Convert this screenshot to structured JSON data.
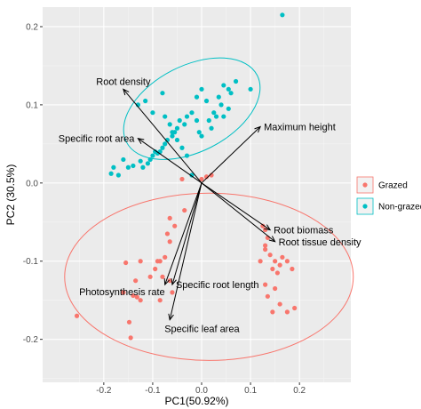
{
  "chart_data": {
    "type": "scatter",
    "title": "",
    "xlabel": "PC1(50.92%)",
    "ylabel": "PC2 (30.5%)",
    "xlim": [
      -0.325,
      0.305
    ],
    "ylim": [
      -0.255,
      0.225
    ],
    "xticks": [
      -0.2,
      -0.1,
      0.0,
      0.1,
      0.2
    ],
    "xtick_labels": [
      "-0.2",
      "-0.1",
      "0.0",
      "0.1",
      "0.2"
    ],
    "yticks": [
      -0.2,
      -0.1,
      0.0,
      0.1,
      0.2
    ],
    "ytick_labels": [
      "-0.2",
      "-0.1",
      "0.0",
      "0.1",
      "0.2"
    ],
    "grid": true,
    "legend_position": "right",
    "series": [
      {
        "name": "Grazed",
        "color": "#F8766D",
        "points": [
          [
            -0.255,
            -0.17
          ],
          [
            -0.145,
            -0.198
          ],
          [
            -0.148,
            -0.178
          ],
          [
            -0.16,
            -0.14
          ],
          [
            -0.14,
            -0.144
          ],
          [
            -0.132,
            -0.146
          ],
          [
            -0.125,
            -0.15
          ],
          [
            -0.135,
            -0.125
          ],
          [
            -0.155,
            -0.102
          ],
          [
            -0.125,
            -0.1
          ],
          [
            -0.105,
            -0.12
          ],
          [
            -0.095,
            -0.11
          ],
          [
            -0.09,
            -0.1
          ],
          [
            -0.085,
            -0.1
          ],
          [
            -0.075,
            -0.095
          ],
          [
            -0.08,
            -0.12
          ],
          [
            -0.085,
            -0.15
          ],
          [
            -0.065,
            -0.125
          ],
          [
            -0.06,
            -0.14
          ],
          [
            -0.065,
            -0.075
          ],
          [
            -0.07,
            -0.065
          ],
          [
            -0.055,
            -0.055
          ],
          [
            -0.065,
            -0.045
          ],
          [
            -0.035,
            -0.035
          ],
          [
            -0.04,
            0.005
          ],
          [
            -0.02,
            0.01
          ],
          [
            0.0,
            0.005
          ],
          [
            0.01,
            0.008
          ],
          [
            0.02,
            0.01
          ],
          [
            0.125,
            -0.055
          ],
          [
            0.13,
            -0.06
          ],
          [
            0.135,
            -0.07
          ],
          [
            0.13,
            -0.08
          ],
          [
            0.13,
            -0.085
          ],
          [
            0.14,
            -0.092
          ],
          [
            0.12,
            -0.1
          ],
          [
            0.15,
            -0.1
          ],
          [
            0.165,
            -0.095
          ],
          [
            0.175,
            -0.1
          ],
          [
            0.16,
            -0.105
          ],
          [
            0.145,
            -0.11
          ],
          [
            0.155,
            -0.115
          ],
          [
            0.185,
            -0.11
          ],
          [
            0.13,
            -0.13
          ],
          [
            0.15,
            -0.135
          ],
          [
            0.135,
            -0.145
          ],
          [
            0.16,
            -0.155
          ],
          [
            0.145,
            -0.165
          ],
          [
            0.175,
            -0.165
          ],
          [
            0.19,
            -0.16
          ]
        ]
      },
      {
        "name": "Non-grazed",
        "color": "#00BFC4",
        "points": [
          [
            0.165,
            0.215
          ],
          [
            0.1,
            0.12
          ],
          [
            0.07,
            0.13
          ],
          [
            0.045,
            0.125
          ],
          [
            0.055,
            0.12
          ],
          [
            0.06,
            0.115
          ],
          [
            0.035,
            0.11
          ],
          [
            0.04,
            0.1
          ],
          [
            0.055,
            0.095
          ],
          [
            0.025,
            0.09
          ],
          [
            0.03,
            0.085
          ],
          [
            0.045,
            0.085
          ],
          [
            0.01,
            0.105
          ],
          [
            0.0,
            0.12
          ],
          [
            -0.01,
            0.11
          ],
          [
            0.015,
            0.08
          ],
          [
            0.02,
            0.07
          ],
          [
            -0.01,
            0.08
          ],
          [
            -0.02,
            0.09
          ],
          [
            -0.03,
            0.085
          ],
          [
            -0.035,
            0.075
          ],
          [
            -0.045,
            0.08
          ],
          [
            -0.05,
            0.07
          ],
          [
            -0.055,
            0.065
          ],
          [
            -0.06,
            0.06
          ],
          [
            -0.07,
            0.055
          ],
          [
            -0.075,
            0.05
          ],
          [
            -0.08,
            0.045
          ],
          [
            -0.085,
            0.04
          ],
          [
            -0.09,
            0.038
          ],
          [
            -0.095,
            0.04
          ],
          [
            -0.1,
            0.035
          ],
          [
            -0.105,
            0.03
          ],
          [
            -0.11,
            0.025
          ],
          [
            -0.12,
            0.02
          ],
          [
            -0.125,
            0.028
          ],
          [
            -0.14,
            0.022
          ],
          [
            -0.15,
            0.02
          ],
          [
            -0.16,
            0.03
          ],
          [
            -0.17,
            0.01
          ],
          [
            -0.18,
            0.02
          ],
          [
            -0.185,
            0.012
          ],
          [
            -0.13,
            0.1
          ],
          [
            -0.115,
            0.105
          ],
          [
            -0.1,
            0.09
          ],
          [
            -0.075,
            0.085
          ],
          [
            -0.065,
            0.075
          ],
          [
            -0.05,
            0.055
          ],
          [
            -0.04,
            0.045
          ],
          [
            -0.03,
            0.035
          ],
          [
            -0.02,
            0.01
          ],
          [
            -0.08,
            0.115
          ],
          [
            -0.06,
            0.065
          ],
          [
            0.0,
            0.06
          ],
          [
            -0.005,
            0.065
          ]
        ]
      }
    ],
    "ellipses": [
      {
        "series": "Grazed",
        "center": [
          0.015,
          -0.12
        ],
        "rx": 0.295,
        "ry": 0.107,
        "angle_deg": 0
      },
      {
        "series": "Non-grazed",
        "center": [
          -0.02,
          0.095
        ],
        "rx": 0.15,
        "ry": 0.055,
        "angle_deg": 27
      }
    ],
    "loadings": [
      {
        "name": "Root density",
        "end": [
          -0.16,
          0.12
        ]
      },
      {
        "name": "Specific root area",
        "end": [
          -0.13,
          0.057
        ]
      },
      {
        "name": "Maximum height",
        "end": [
          0.12,
          0.072
        ]
      },
      {
        "name": "Root biomass",
        "end": [
          0.14,
          -0.06
        ]
      },
      {
        "name": "Root tissue density",
        "end": [
          0.15,
          -0.075
        ]
      },
      {
        "name": "Photosynthesis rate",
        "end": [
          -0.075,
          -0.13
        ]
      },
      {
        "name": "Specific root length",
        "end": [
          -0.06,
          -0.13
        ]
      },
      {
        "name": "Specific leaf area",
        "end": [
          -0.065,
          -0.175
        ]
      }
    ]
  }
}
